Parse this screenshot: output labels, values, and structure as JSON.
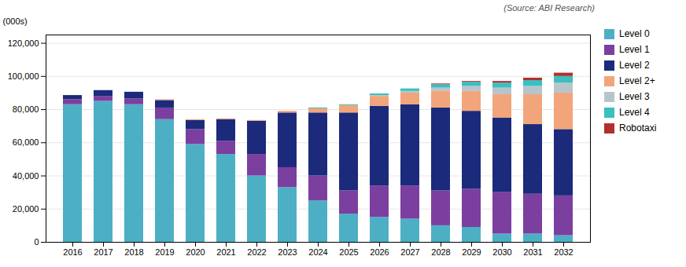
{
  "chart_data": {
    "type": "bar",
    "stacked": true,
    "categories": [
      "2016",
      "2017",
      "2018",
      "2019",
      "2020",
      "2021",
      "2022",
      "2023",
      "2024",
      "2025",
      "2026",
      "2027",
      "2028",
      "2029",
      "2030",
      "2031",
      "2032"
    ],
    "series": [
      {
        "name": "Level 0",
        "color": "#4dafc4",
        "values": [
          83000,
          85000,
          83000,
          74000,
          59000,
          53000,
          40000,
          33000,
          25000,
          17000,
          15000,
          14000,
          10000,
          9000,
          5000,
          5000,
          4000
        ]
      },
      {
        "name": "Level 1",
        "color": "#7b3fa0",
        "values": [
          3000,
          3000,
          3500,
          7000,
          9000,
          8000,
          13000,
          12000,
          15000,
          14000,
          19000,
          20000,
          21000,
          23000,
          25000,
          24000,
          24000
        ]
      },
      {
        "name": "Level 2",
        "color": "#1b2a7a",
        "values": [
          2500,
          3500,
          4000,
          4500,
          5500,
          13000,
          20000,
          33000,
          38000,
          47000,
          48000,
          49000,
          50000,
          47000,
          45000,
          42000,
          40000
        ]
      },
      {
        "name": "Level 2+",
        "color": "#f2a57b",
        "values": [
          0,
          0,
          0,
          500,
          500,
          500,
          500,
          1000,
          2500,
          4500,
          6000,
          7000,
          10000,
          12000,
          14000,
          18000,
          22000
        ]
      },
      {
        "name": "Level 3",
        "color": "#b8c4cc",
        "values": [
          0,
          0,
          0,
          0,
          0,
          0,
          0,
          0,
          0,
          0,
          500,
          1000,
          2000,
          3000,
          4000,
          5000,
          6000
        ]
      },
      {
        "name": "Level 4",
        "color": "#3bbfbf",
        "values": [
          0,
          0,
          0,
          0,
          0,
          0,
          0,
          0,
          500,
          500,
          1000,
          1500,
          2000,
          2500,
          3000,
          3500,
          4000
        ]
      },
      {
        "name": "Robotaxi",
        "color": "#b03030",
        "values": [
          0,
          0,
          0,
          0,
          0,
          0,
          0,
          0,
          0,
          0,
          0,
          0,
          500,
          500,
          1000,
          1500,
          2000
        ]
      }
    ],
    "ylabel": "(000s)",
    "annotations": [
      "(Source: ABI Research)"
    ],
    "ylim": [
      0,
      125000
    ],
    "yticks": [
      0,
      {
        "value": 20000,
        "label": "20,000"
      },
      {
        "value": 40000,
        "label": "40,000"
      },
      {
        "value": 60000,
        "label": "60,000"
      },
      {
        "value": 80000,
        "label": "80,000"
      },
      {
        "value": 100000,
        "label": "100,000"
      },
      {
        "value": 120000,
        "label": "120,000"
      }
    ],
    "grid": true,
    "legend": "right"
  }
}
